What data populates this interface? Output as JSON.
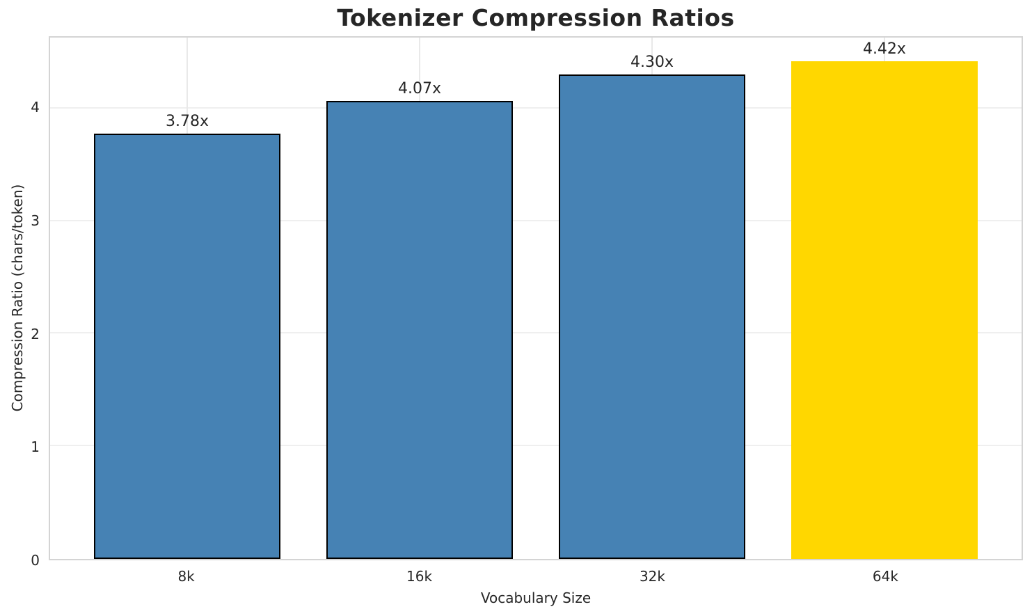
{
  "page": {
    "background": "#ffffff"
  },
  "chart_data": {
    "type": "bar",
    "title": "Tokenizer Compression Ratios",
    "xlabel": "Vocabulary Size",
    "ylabel": "Compression Ratio (chars/token)",
    "categories": [
      "8k",
      "16k",
      "32k",
      "64k"
    ],
    "values": [
      3.78,
      4.07,
      4.3,
      4.42
    ],
    "bar_labels": [
      "3.78x",
      "4.07x",
      "4.30x",
      "4.42x"
    ],
    "bar_colors": [
      "#4682B4",
      "#4682B4",
      "#4682B4",
      "#FFD700"
    ],
    "bar_edge_colors": [
      "#000000",
      "#000000",
      "#000000",
      "transparent"
    ],
    "highlighted_category": "64k",
    "yticks": [
      0,
      1,
      2,
      3,
      4
    ],
    "ylim": [
      0,
      4.63
    ],
    "xlim": [
      -0.59,
      3.59
    ],
    "bar_width": 0.8,
    "grid": true,
    "legend": null
  },
  "style": {
    "text_color": "#262626",
    "grid_color": "#efefef",
    "grid_color_vertical": "#e9e9e9",
    "spine_color": "#d4d4d4",
    "accent_blue": "#4682B4",
    "accent_gold": "#FFD700"
  }
}
